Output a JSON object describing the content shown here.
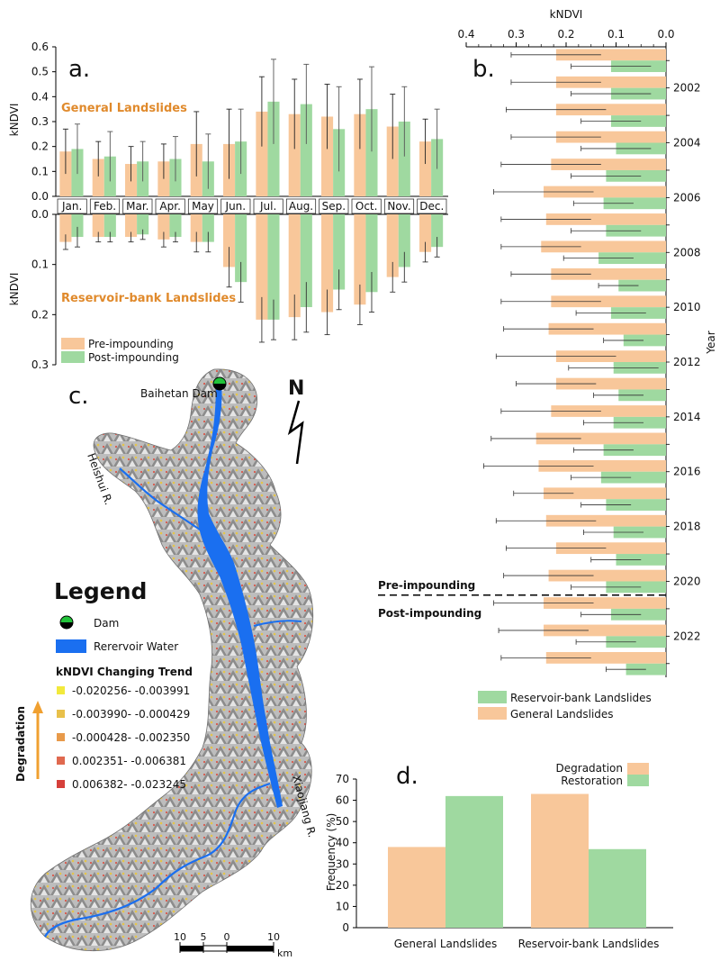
{
  "colors": {
    "pre": "#f8c79a",
    "post": "#9fd9a0",
    "general": "#f8c79a",
    "reservoir": "#9fd9a0",
    "degradation": "#f8c79a",
    "restoration": "#9fd9a0",
    "water": "#1a6ff0",
    "title_orange": "#e08a2c",
    "trend": [
      "#f2e93c",
      "#e8c04a",
      "#e89a4a",
      "#e0694f",
      "#d6403a"
    ]
  },
  "panels": {
    "a": "a.",
    "b": "b.",
    "c": "c.",
    "d": "d."
  },
  "chart_data": [
    {
      "id": "a-top",
      "type": "bar",
      "title": "General Landslides",
      "ylabel": "kNDVI",
      "categories": [
        "Jan.",
        "Feb.",
        "Mar.",
        "Apr.",
        "May",
        "Jun.",
        "Jul.",
        "Aug.",
        "Sep.",
        "Oct.",
        "Nov.",
        "Dec."
      ],
      "ylim": [
        0,
        0.6
      ],
      "yticks": [
        "0.0",
        "0.1",
        "0.2",
        "0.3",
        "0.4",
        "0.5",
        "0.6"
      ],
      "series": [
        {
          "name": "Pre-impounding",
          "values": [
            0.18,
            0.15,
            0.13,
            0.14,
            0.21,
            0.21,
            0.34,
            0.33,
            0.32,
            0.33,
            0.28,
            0.22
          ],
          "err": [
            0.09,
            0.07,
            0.07,
            0.07,
            0.13,
            0.14,
            0.14,
            0.14,
            0.13,
            0.14,
            0.13,
            0.09
          ]
        },
        {
          "name": "Post-impounding",
          "values": [
            0.19,
            0.16,
            0.14,
            0.15,
            0.14,
            0.22,
            0.38,
            0.37,
            0.27,
            0.35,
            0.3,
            0.23
          ],
          "err": [
            0.1,
            0.1,
            0.08,
            0.09,
            0.11,
            0.13,
            0.17,
            0.16,
            0.17,
            0.17,
            0.14,
            0.12
          ]
        }
      ]
    },
    {
      "id": "a-bottom",
      "type": "bar",
      "title": "Reservoir-bank Landslides",
      "ylabel": "kNDVI",
      "categories": [
        "Jan.",
        "Feb.",
        "Mar.",
        "Apr.",
        "May",
        "Jun.",
        "Jul.",
        "Aug.",
        "Sep.",
        "Oct.",
        "Nov.",
        "Dec."
      ],
      "ylim": [
        0.3,
        0
      ],
      "yticks": [
        "0.0",
        "0.1",
        "0.2",
        "0.3"
      ],
      "series": [
        {
          "name": "Pre-impounding",
          "values": [
            0.055,
            0.045,
            0.045,
            0.05,
            0.055,
            0.105,
            0.21,
            0.205,
            0.195,
            0.18,
            0.125,
            0.075
          ],
          "err": [
            0.015,
            0.01,
            0.01,
            0.015,
            0.02,
            0.04,
            0.045,
            0.045,
            0.045,
            0.04,
            0.03,
            0.02
          ]
        },
        {
          "name": "Post-impounding",
          "values": [
            0.045,
            0.045,
            0.04,
            0.045,
            0.055,
            0.135,
            0.21,
            0.185,
            0.15,
            0.155,
            0.105,
            0.065
          ],
          "err": [
            0.02,
            0.01,
            0.01,
            0.01,
            0.02,
            0.04,
            0.04,
            0.05,
            0.04,
            0.04,
            0.03,
            0.02
          ]
        }
      ],
      "legend": [
        "Pre-impounding",
        "Post-impounding"
      ]
    },
    {
      "id": "b",
      "type": "bar",
      "orientation": "horizontal",
      "xlabel": "kNDVI",
      "ylabel": "Year",
      "xlim": [
        0.4,
        0
      ],
      "xticks": [
        "0.4",
        "0.3",
        "0.2",
        "0.1",
        "0.0"
      ],
      "year_ticks": [
        "2002",
        "2004",
        "2006",
        "2008",
        "2010",
        "2012",
        "2014",
        "2016",
        "2018",
        "2020",
        "2022"
      ],
      "series": [
        {
          "name": "General Landslides",
          "values": [
            0.22,
            0.22,
            0.22,
            0.22,
            0.23,
            0.245,
            0.24,
            0.25,
            0.23,
            0.23,
            0.235,
            0.22,
            0.22,
            0.23,
            0.26,
            0.255,
            0.245,
            0.24,
            0.22,
            0.235,
            0.245,
            0.245,
            0.24
          ],
          "err": [
            0.09,
            0.09,
            0.1,
            0.09,
            0.1,
            0.1,
            0.09,
            0.08,
            0.08,
            0.1,
            0.09,
            0.12,
            0.08,
            0.1,
            0.09,
            0.11,
            0.06,
            0.1,
            0.1,
            0.09,
            0.1,
            0.09,
            0.09
          ]
        },
        {
          "name": "Reservoir-bank Landslides",
          "values": [
            0.11,
            0.11,
            0.11,
            0.1,
            0.12,
            0.125,
            0.12,
            0.135,
            0.095,
            0.11,
            0.085,
            0.105,
            0.095,
            0.105,
            0.125,
            0.13,
            0.12,
            0.105,
            0.1,
            0.12,
            0.11,
            0.12,
            0.08
          ],
          "err": [
            0.08,
            0.08,
            0.06,
            0.07,
            0.07,
            0.06,
            0.07,
            0.07,
            0.04,
            0.07,
            0.04,
            0.09,
            0.05,
            0.06,
            0.06,
            0.06,
            0.05,
            0.06,
            0.05,
            0.07,
            0.06,
            0.06,
            0.04
          ]
        }
      ],
      "divider_labels": [
        "Pre-impounding",
        "Post-impounding"
      ],
      "legend": [
        "Reservoir-bank Landslides",
        "General Landslides"
      ]
    },
    {
      "id": "d",
      "type": "bar",
      "ylabel": "Frequency (%)",
      "categories": [
        "General Landslides",
        "Reservoir-bank Landslides"
      ],
      "ylim": [
        0,
        70
      ],
      "yticks": [
        "0",
        "10",
        "20",
        "30",
        "40",
        "50",
        "60",
        "70"
      ],
      "series": [
        {
          "name": "Degradation",
          "values": [
            38,
            63
          ]
        },
        {
          "name": "Restoration",
          "values": [
            62,
            37
          ]
        }
      ]
    }
  ],
  "map": {
    "dam_label": "Baihetan Dam",
    "north": "N",
    "river_heishui": "Heishui R.",
    "river_xiaojiang": "Xiaojiang R.",
    "legend_title": "Legend",
    "legend_dam": "Dam",
    "legend_water": "Rerervoir Water",
    "trend_title": "kNDVI Changing Trend",
    "trend_classes": [
      "-0.020256- -0.003991",
      "-0.003990- -0.000429",
      "-0.000428- -0.002350",
      "0.002351- -0.006381",
      "0.006382- -0.023245"
    ],
    "degradation_label": "Degradation",
    "scale_ticks": [
      "10",
      "5",
      "0",
      "10"
    ],
    "scale_unit": "km"
  }
}
